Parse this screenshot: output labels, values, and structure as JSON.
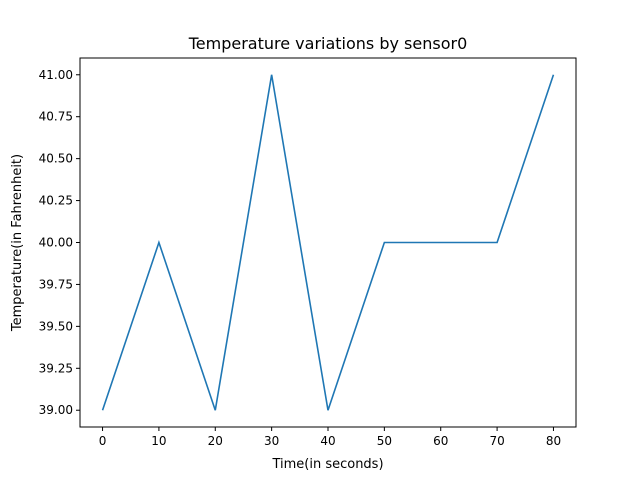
{
  "chart_data": {
    "type": "line",
    "title": "Temperature variations by sensor0",
    "xlabel": "Time(in seconds)",
    "ylabel": "Temperature(in Fahrenheit)",
    "xlim": [
      -4,
      84
    ],
    "ylim": [
      38.9,
      41.1
    ],
    "x_ticks": [
      0,
      10,
      20,
      30,
      40,
      50,
      60,
      70,
      80
    ],
    "x_tick_labels": [
      "0",
      "10",
      "20",
      "30",
      "40",
      "50",
      "60",
      "70",
      "80"
    ],
    "y_ticks": [
      39.0,
      39.25,
      39.5,
      39.75,
      40.0,
      40.25,
      40.5,
      40.75,
      41.0
    ],
    "y_tick_labels": [
      "39.00",
      "39.25",
      "39.50",
      "39.75",
      "40.00",
      "40.25",
      "40.50",
      "40.75",
      "41.00"
    ],
    "grid": false,
    "legend": "none",
    "series": [
      {
        "color": "#1f77b4",
        "x": [
          0,
          10,
          20,
          30,
          40,
          50,
          60,
          70,
          80
        ],
        "y": [
          39,
          40,
          39,
          41,
          39,
          40,
          40,
          40,
          41
        ]
      }
    ]
  }
}
